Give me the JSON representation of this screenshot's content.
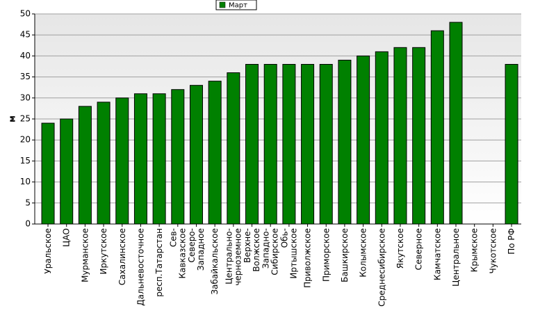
{
  "chart_data": {
    "type": "bar",
    "y_label": "м",
    "legend_position": "top",
    "grid": true,
    "series": [
      {
        "name": "Март",
        "color": "#008000",
        "values": [
          24,
          25,
          28,
          29,
          30,
          31,
          31,
          32,
          33,
          34,
          36,
          38,
          38,
          38,
          38,
          38,
          39,
          40,
          41,
          42,
          42,
          46,
          48,
          null,
          null,
          38
        ]
      }
    ],
    "categories": [
      "Уральское",
      "ЦАО",
      "Мурманское",
      "Иркутское",
      "Сахалинское",
      "Дальневосточное",
      "респ.Татарстан",
      "Сев-\nКавказское",
      "Северо-\nЗападное",
      "Забайкальское",
      "Центрально-\nчерноземное",
      "Верхне-\nВолжское",
      "Западно-\nСибирское",
      "Обь-\nИртышское",
      "Приволжское",
      "Приморское",
      "Башкирское",
      "Колымское",
      "Среднесибирское",
      "Якутское",
      "Северное",
      "Камчатское",
      "Центральное",
      "Крымское",
      "Чукотское",
      "По РФ"
    ],
    "ylim": [
      0,
      50
    ],
    "yticks": [
      0,
      5,
      10,
      15,
      20,
      25,
      30,
      35,
      40,
      45,
      50
    ]
  }
}
